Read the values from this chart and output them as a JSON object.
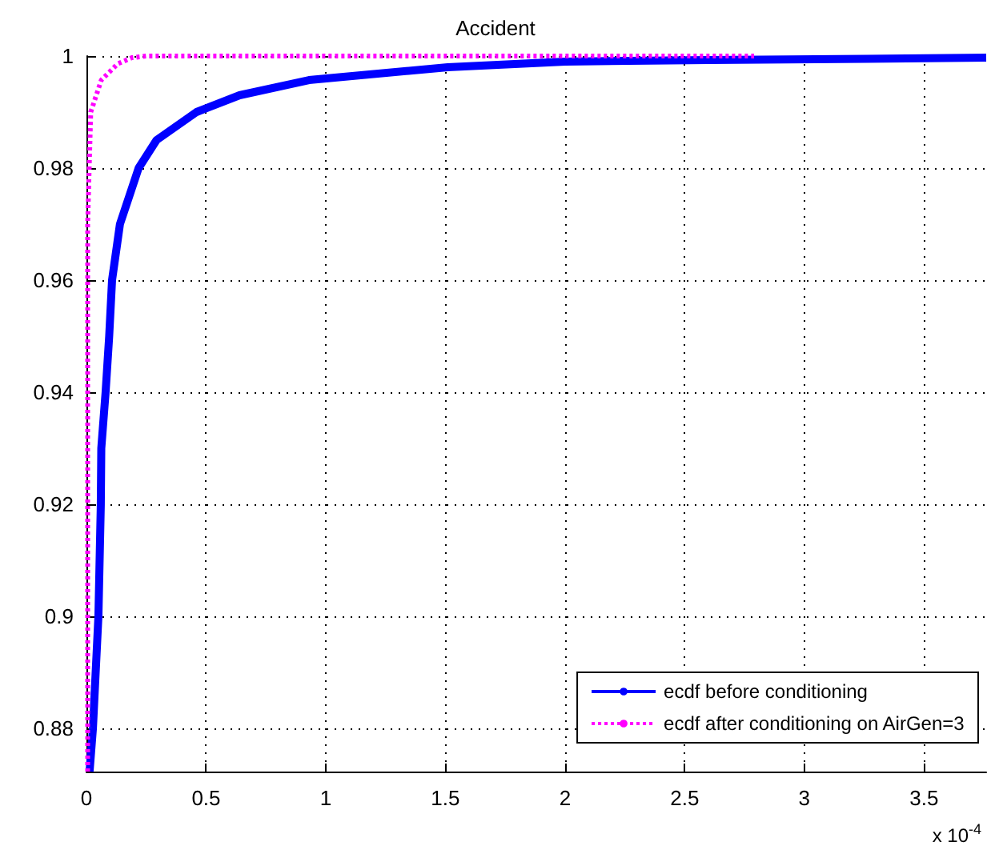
{
  "chart_data": {
    "type": "line",
    "title": "Accident",
    "annotations": [
      "x 10$^{-4}$"
    ],
    "xlim": [
      0,
      3.76
    ],
    "xticks": [
      0,
      0.5,
      1,
      1.5,
      2,
      2.5,
      3,
      3.5
    ],
    "ylim": [
      0.8723,
      1
    ],
    "yticks": [
      0.88,
      0.9,
      0.92,
      0.94,
      0.96,
      0.98,
      1
    ],
    "grid": true,
    "legend": "bottom right",
    "marker": "none",
    "series": [
      {
        "name": "ecdf before conditioning",
        "color": "#0000ff",
        "line_style": "solid",
        "x": [
          0.013,
          0.027,
          0.05,
          0.06,
          0.062,
          0.08,
          0.095,
          0.107,
          0.14,
          0.218,
          0.293,
          0.46,
          0.64,
          0.93,
          1.51,
          2.0,
          2.6,
          3.26,
          3.76
        ],
        "values": [
          0.8723,
          0.88,
          0.9,
          0.92,
          0.93,
          0.94,
          0.95,
          0.96,
          0.97,
          0.98,
          0.985,
          0.99,
          0.993,
          0.9957,
          0.998,
          0.999,
          0.9993,
          0.9995,
          0.9997
        ]
      },
      {
        "name": "ecdf after conditioning on AirGen=3",
        "color": "#ff00ff",
        "line_style": "dotted",
        "x": [
          0.005,
          0.005,
          0.018,
          0.062,
          0.13,
          0.19,
          0.25,
          2.79
        ],
        "values": [
          0.8723,
          0.97,
          0.99,
          0.9957,
          0.9986,
          0.9997,
          1,
          1
        ]
      }
    ]
  }
}
